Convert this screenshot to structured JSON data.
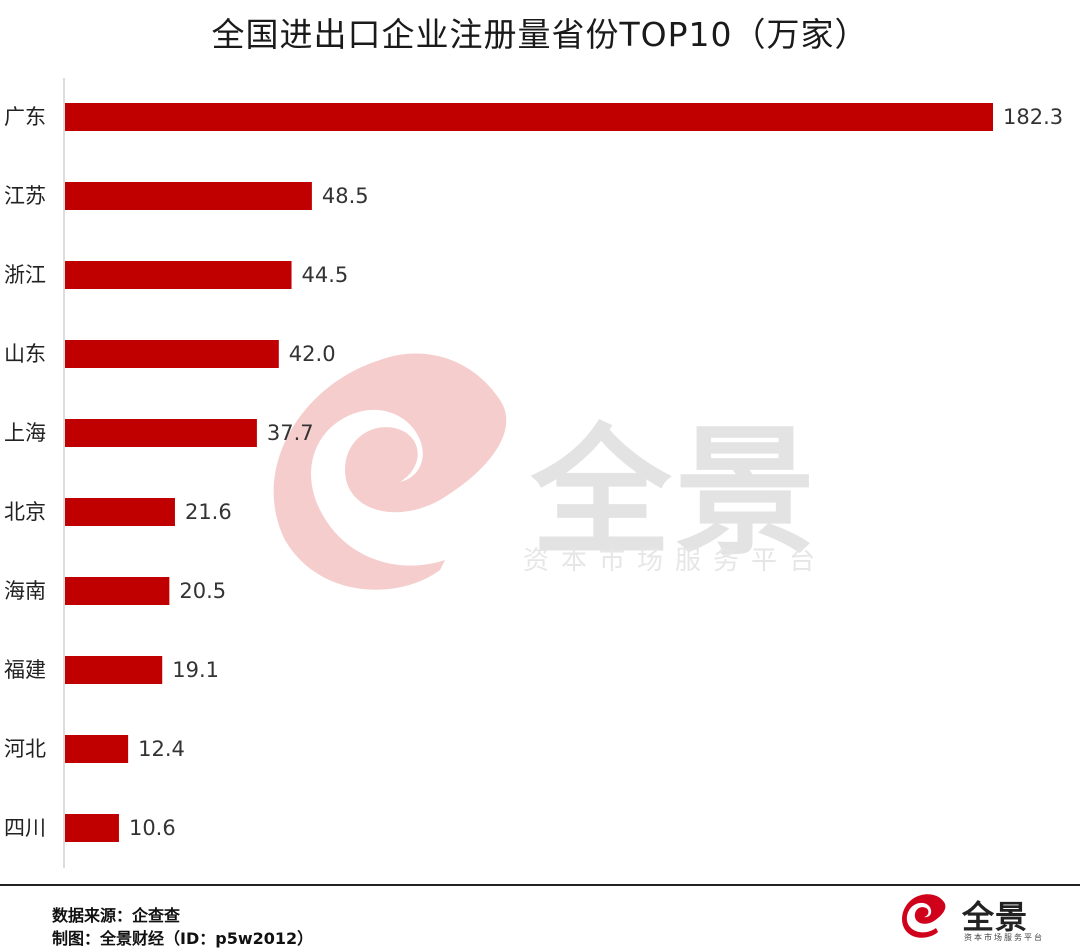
{
  "chart_data": {
    "type": "bar",
    "orientation": "horizontal",
    "title": "全国进出口企业注册量省份TOP10（万家）",
    "categories": [
      "广东",
      "江苏",
      "浙江",
      "山东",
      "上海",
      "北京",
      "海南",
      "福建",
      "河北",
      "四川"
    ],
    "values": [
      182.3,
      48.5,
      44.5,
      42.0,
      37.7,
      21.6,
      20.5,
      19.1,
      12.4,
      10.6
    ],
    "value_labels": [
      "182.3",
      "48.5",
      "44.5",
      "42.0",
      "37.7",
      "21.6",
      "20.5",
      "19.1",
      "12.4",
      "10.6"
    ],
    "xlim": [
      0,
      182.3
    ],
    "bar_color": "#c00000",
    "grid": false,
    "legend": "none"
  },
  "footer": {
    "source": "数据来源：企查查",
    "credit": "制图：全景财经（ID：p5w2012）"
  },
  "watermark": {
    "text": "全景",
    "subtext": "资本市场服务平台",
    "color": "#f0b3b3"
  },
  "logo": {
    "text": "全景",
    "subtext": "资本市场服务平台",
    "color": "#d0021b"
  }
}
